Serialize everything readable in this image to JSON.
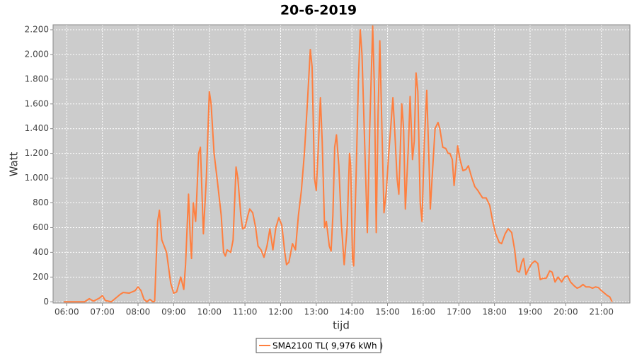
{
  "chart_data": {
    "type": "line",
    "title": "20-6-2019",
    "x_label": "tijd",
    "y_label": "Watt",
    "xlim": [
      "05:37",
      "21:48"
    ],
    "xticks": [
      "06:00",
      "07:00",
      "08:00",
      "09:00",
      "10:00",
      "11:00",
      "12:00",
      "13:00",
      "14:00",
      "15:00",
      "16:00",
      "17:00",
      "18:00",
      "19:00",
      "20:00",
      "21:00"
    ],
    "ylim": [
      -10,
      2240
    ],
    "yticks": [
      0,
      200,
      400,
      600,
      800,
      {
        "value": 1000,
        "label": "1.000"
      },
      {
        "value": 1200,
        "label": "1.200"
      },
      {
        "value": 1400,
        "label": "1.400"
      },
      {
        "value": 1600,
        "label": "1.600"
      },
      {
        "value": 1800,
        "label": "1.800"
      },
      {
        "value": 2000,
        "label": "2.000"
      },
      {
        "value": 2200,
        "label": "2.200"
      }
    ],
    "grid": true,
    "legend": "bottom",
    "x": [
      "05:55",
      "06:30",
      "06:38",
      "06:45",
      "06:55",
      "07:00",
      "07:05",
      "07:15",
      "07:30",
      "07:35",
      "07:45",
      "07:55",
      "08:00",
      "08:05",
      "08:10",
      "08:15",
      "08:20",
      "08:25",
      "08:28",
      "08:33",
      "08:36",
      "08:40",
      "08:48",
      "08:55",
      "09:00",
      "09:05",
      "09:12",
      "09:17",
      "09:20",
      "09:25",
      "09:28",
      "09:30",
      "09:33",
      "09:37",
      "09:42",
      "09:45",
      "09:50",
      "09:55",
      "10:00",
      "10:03",
      "10:08",
      "10:13",
      "10:20",
      "10:24",
      "10:27",
      "10:30",
      "10:36",
      "10:40",
      "10:45",
      "10:48",
      "10:53",
      "10:56",
      "11:00",
      "11:05",
      "11:08",
      "11:13",
      "11:18",
      "11:22",
      "11:27",
      "11:32",
      "11:37",
      "11:42",
      "11:47",
      "11:52",
      "11:57",
      "12:02",
      "12:07",
      "12:10",
      "12:14",
      "12:20",
      "12:25",
      "12:30",
      "12:35",
      "12:40",
      "12:45",
      "12:50",
      "12:53",
      "12:57",
      "13:00",
      "13:03",
      "13:07",
      "13:10",
      "13:14",
      "13:17",
      "13:22",
      "13:25",
      "13:28",
      "13:31",
      "13:34",
      "13:38",
      "13:42",
      "13:47",
      "13:52",
      "13:56",
      "13:58",
      "14:01",
      "14:03",
      "14:07",
      "14:11",
      "14:14",
      "14:17",
      "14:22",
      "14:26",
      "14:30",
      "14:35",
      "14:38",
      "14:41",
      "14:44",
      "14:47",
      "14:50",
      "14:54",
      "14:58",
      "15:02",
      "15:06",
      "15:09",
      "15:13",
      "15:16",
      "15:19",
      "15:24",
      "15:27",
      "15:30",
      "15:35",
      "15:38",
      "15:42",
      "15:45",
      "15:48",
      "15:51",
      "15:55",
      "15:58",
      "16:02",
      "16:06",
      "16:10",
      "16:12",
      "16:15",
      "16:20",
      "16:25",
      "16:28",
      "16:33",
      "16:38",
      "16:42",
      "16:45",
      "16:49",
      "16:52",
      "16:58",
      "17:02",
      "17:07",
      "17:12",
      "17:16",
      "17:22",
      "17:27",
      "17:32",
      "17:40",
      "17:46",
      "17:52",
      "17:57",
      "18:02",
      "18:08",
      "18:12",
      "18:18",
      "18:23",
      "18:29",
      "18:34",
      "18:38",
      "18:42",
      "18:46",
      "18:49",
      "18:53",
      "18:58",
      "19:03",
      "19:08",
      "19:13",
      "19:17",
      "19:22",
      "19:27",
      "19:33",
      "19:37",
      "19:42",
      "19:47",
      "19:53",
      "19:58",
      "20:03",
      "20:08",
      "20:14",
      "20:19",
      "20:24",
      "20:29",
      "20:34",
      "20:40",
      "20:45",
      "20:50",
      "20:55",
      "21:00",
      "21:05",
      "21:10",
      "21:14",
      "21:18"
    ],
    "series": [
      {
        "name": "SMA2100 TL( 9,976 kWh )",
        "color": "#ff7f3f",
        "values": [
          0,
          0,
          25,
          5,
          30,
          50,
          10,
          0,
          60,
          75,
          70,
          90,
          120,
          90,
          20,
          0,
          20,
          0,
          5,
          650,
          740,
          500,
          400,
          150,
          70,
          80,
          200,
          100,
          300,
          870,
          500,
          350,
          800,
          650,
          1200,
          1250,
          550,
          1000,
          1700,
          1600,
          1200,
          1000,
          700,
          400,
          370,
          420,
          400,
          500,
          1090,
          1000,
          700,
          590,
          600,
          700,
          750,
          720,
          600,
          450,
          420,
          360,
          450,
          590,
          420,
          600,
          680,
          620,
          400,
          300,
          320,
          470,
          420,
          700,
          900,
          1200,
          1600,
          2040,
          1900,
          1000,
          900,
          1200,
          1650,
          1300,
          600,
          650,
          450,
          410,
          700,
          1250,
          1350,
          1100,
          650,
          300,
          600,
          1200,
          1100,
          350,
          290,
          1000,
          1800,
          2200,
          2000,
          1200,
          560,
          1400,
          2230,
          1700,
          560,
          1500,
          2110,
          1500,
          720,
          900,
          1200,
          1450,
          1650,
          1300,
          1000,
          870,
          1600,
          1400,
          750,
          1250,
          1660,
          1150,
          1300,
          1850,
          1700,
          800,
          650,
          1300,
          1710,
          1100,
          750,
          1000,
          1400,
          1450,
          1400,
          1250,
          1240,
          1200,
          1200,
          1150,
          940,
          1260,
          1150,
          1060,
          1070,
          1100,
          1000,
          930,
          900,
          840,
          840,
          780,
          650,
          550,
          480,
          470,
          550,
          590,
          560,
          420,
          250,
          240,
          320,
          350,
          220,
          270,
          310,
          330,
          310,
          180,
          190,
          190,
          250,
          240,
          160,
          200,
          160,
          200,
          210,
          160,
          130,
          110,
          120,
          140,
          120,
          120,
          110,
          120,
          115,
          90,
          70,
          50,
          40,
          0
        ]
      }
    ]
  }
}
